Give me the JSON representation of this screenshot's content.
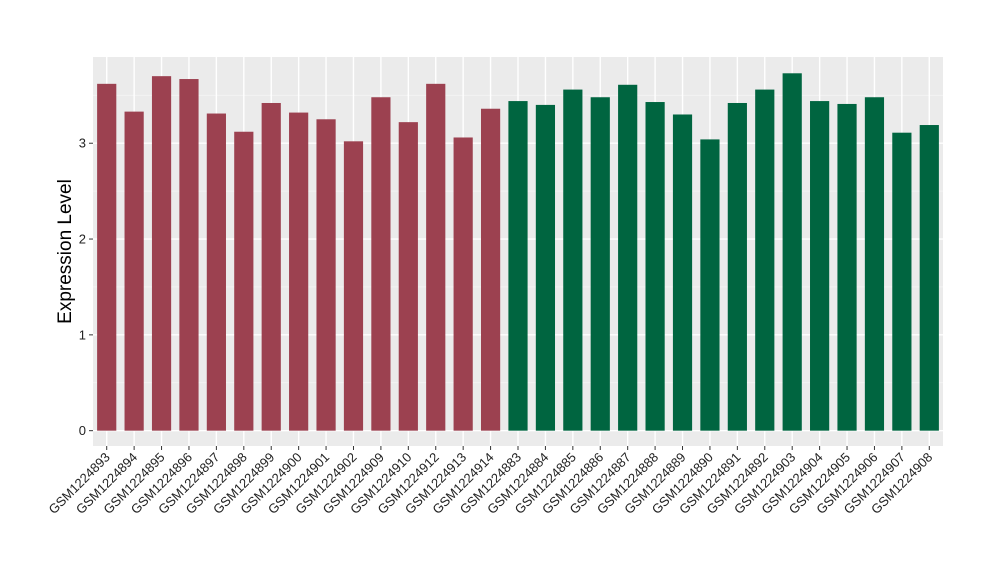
{
  "chart_data": {
    "type": "bar",
    "ylabel": "Expression Level",
    "ylim": [
      -0.16,
      3.9
    ],
    "yticks": [
      0,
      1,
      2,
      3
    ],
    "grid": true,
    "panel_background": "#ebebeb",
    "group_colors": [
      "#9c4150",
      "#006540"
    ],
    "categories": [
      "GSM1224893",
      "GSM1224894",
      "GSM1224895",
      "GSM1224896",
      "GSM1224897",
      "GSM1224898",
      "GSM1224899",
      "GSM1224900",
      "GSM1224901",
      "GSM1224902",
      "GSM1224909",
      "GSM1224910",
      "GSM1224912",
      "GSM1224913",
      "GSM1224914",
      "GSM1224883",
      "GSM1224884",
      "GSM1224885",
      "GSM1224886",
      "GSM1224887",
      "GSM1224888",
      "GSM1224889",
      "GSM1224890",
      "GSM1224891",
      "GSM1224892",
      "GSM1224903",
      "GSM1224904",
      "GSM1224905",
      "GSM1224906",
      "GSM1224907",
      "GSM1224908"
    ],
    "values": [
      3.62,
      3.33,
      3.7,
      3.67,
      3.31,
      3.12,
      3.42,
      3.32,
      3.25,
      3.02,
      3.48,
      3.22,
      3.62,
      3.06,
      3.36,
      3.44,
      3.4,
      3.56,
      3.48,
      3.61,
      3.43,
      3.3,
      3.04,
      3.42,
      3.56,
      3.73,
      3.44,
      3.41,
      3.48,
      3.11,
      3.19
    ],
    "groups": [
      0,
      0,
      0,
      0,
      0,
      0,
      0,
      0,
      0,
      0,
      0,
      0,
      0,
      0,
      0,
      1,
      1,
      1,
      1,
      1,
      1,
      1,
      1,
      1,
      1,
      1,
      1,
      1,
      1,
      1,
      1
    ]
  }
}
